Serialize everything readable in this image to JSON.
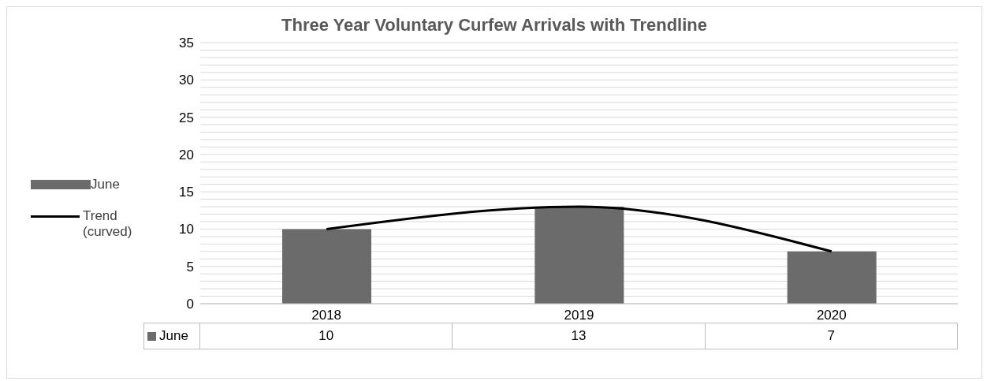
{
  "chart_data": {
    "type": "bar",
    "title": "Three Year Voluntary Curfew Arrivals with Trendline",
    "categories": [
      "2018",
      "2019",
      "2020"
    ],
    "series": [
      {
        "name": "June",
        "color": "#6b6b6b",
        "values": [
          10,
          13,
          7
        ],
        "value_labels": [
          "10",
          "13",
          "7"
        ]
      },
      {
        "name": "Trend (curved)",
        "type": "line",
        "color": "#000000",
        "values": [
          10,
          13,
          7
        ]
      }
    ],
    "ylim": [
      0,
      35
    ],
    "yticks": [
      0,
      {
        "value": 1,
        "label": null
      },
      {
        "value": 2,
        "label": null
      },
      {
        "value": 3,
        "label": null
      },
      {
        "value": 4,
        "label": null
      },
      5,
      {
        "value": 6,
        "label": null
      },
      {
        "value": 7,
        "label": null
      },
      {
        "value": 8,
        "label": null
      },
      {
        "value": 9,
        "label": null
      },
      10,
      {
        "value": 11,
        "label": null
      },
      {
        "value": 12,
        "label": null
      },
      {
        "value": 13,
        "label": null
      },
      {
        "value": 14,
        "label": null
      },
      15,
      {
        "value": 16,
        "label": null
      },
      {
        "value": 17,
        "label": null
      },
      {
        "value": 18,
        "label": null
      },
      {
        "value": 19,
        "label": null
      },
      20,
      {
        "value": 21,
        "label": null
      },
      {
        "value": 22,
        "label": null
      },
      {
        "value": 23,
        "label": null
      },
      {
        "value": 24,
        "label": null
      },
      25,
      {
        "value": 26,
        "label": null
      },
      {
        "value": 27,
        "label": null
      },
      {
        "value": 28,
        "label": null
      },
      {
        "value": 29,
        "label": null
      },
      30,
      {
        "value": 31,
        "label": null
      },
      {
        "value": 32,
        "label": null
      },
      {
        "value": 33,
        "label": null
      },
      {
        "value": 34,
        "label": null
      },
      35
    ],
    "grid": "y",
    "legend": "left",
    "marker": "none"
  }
}
